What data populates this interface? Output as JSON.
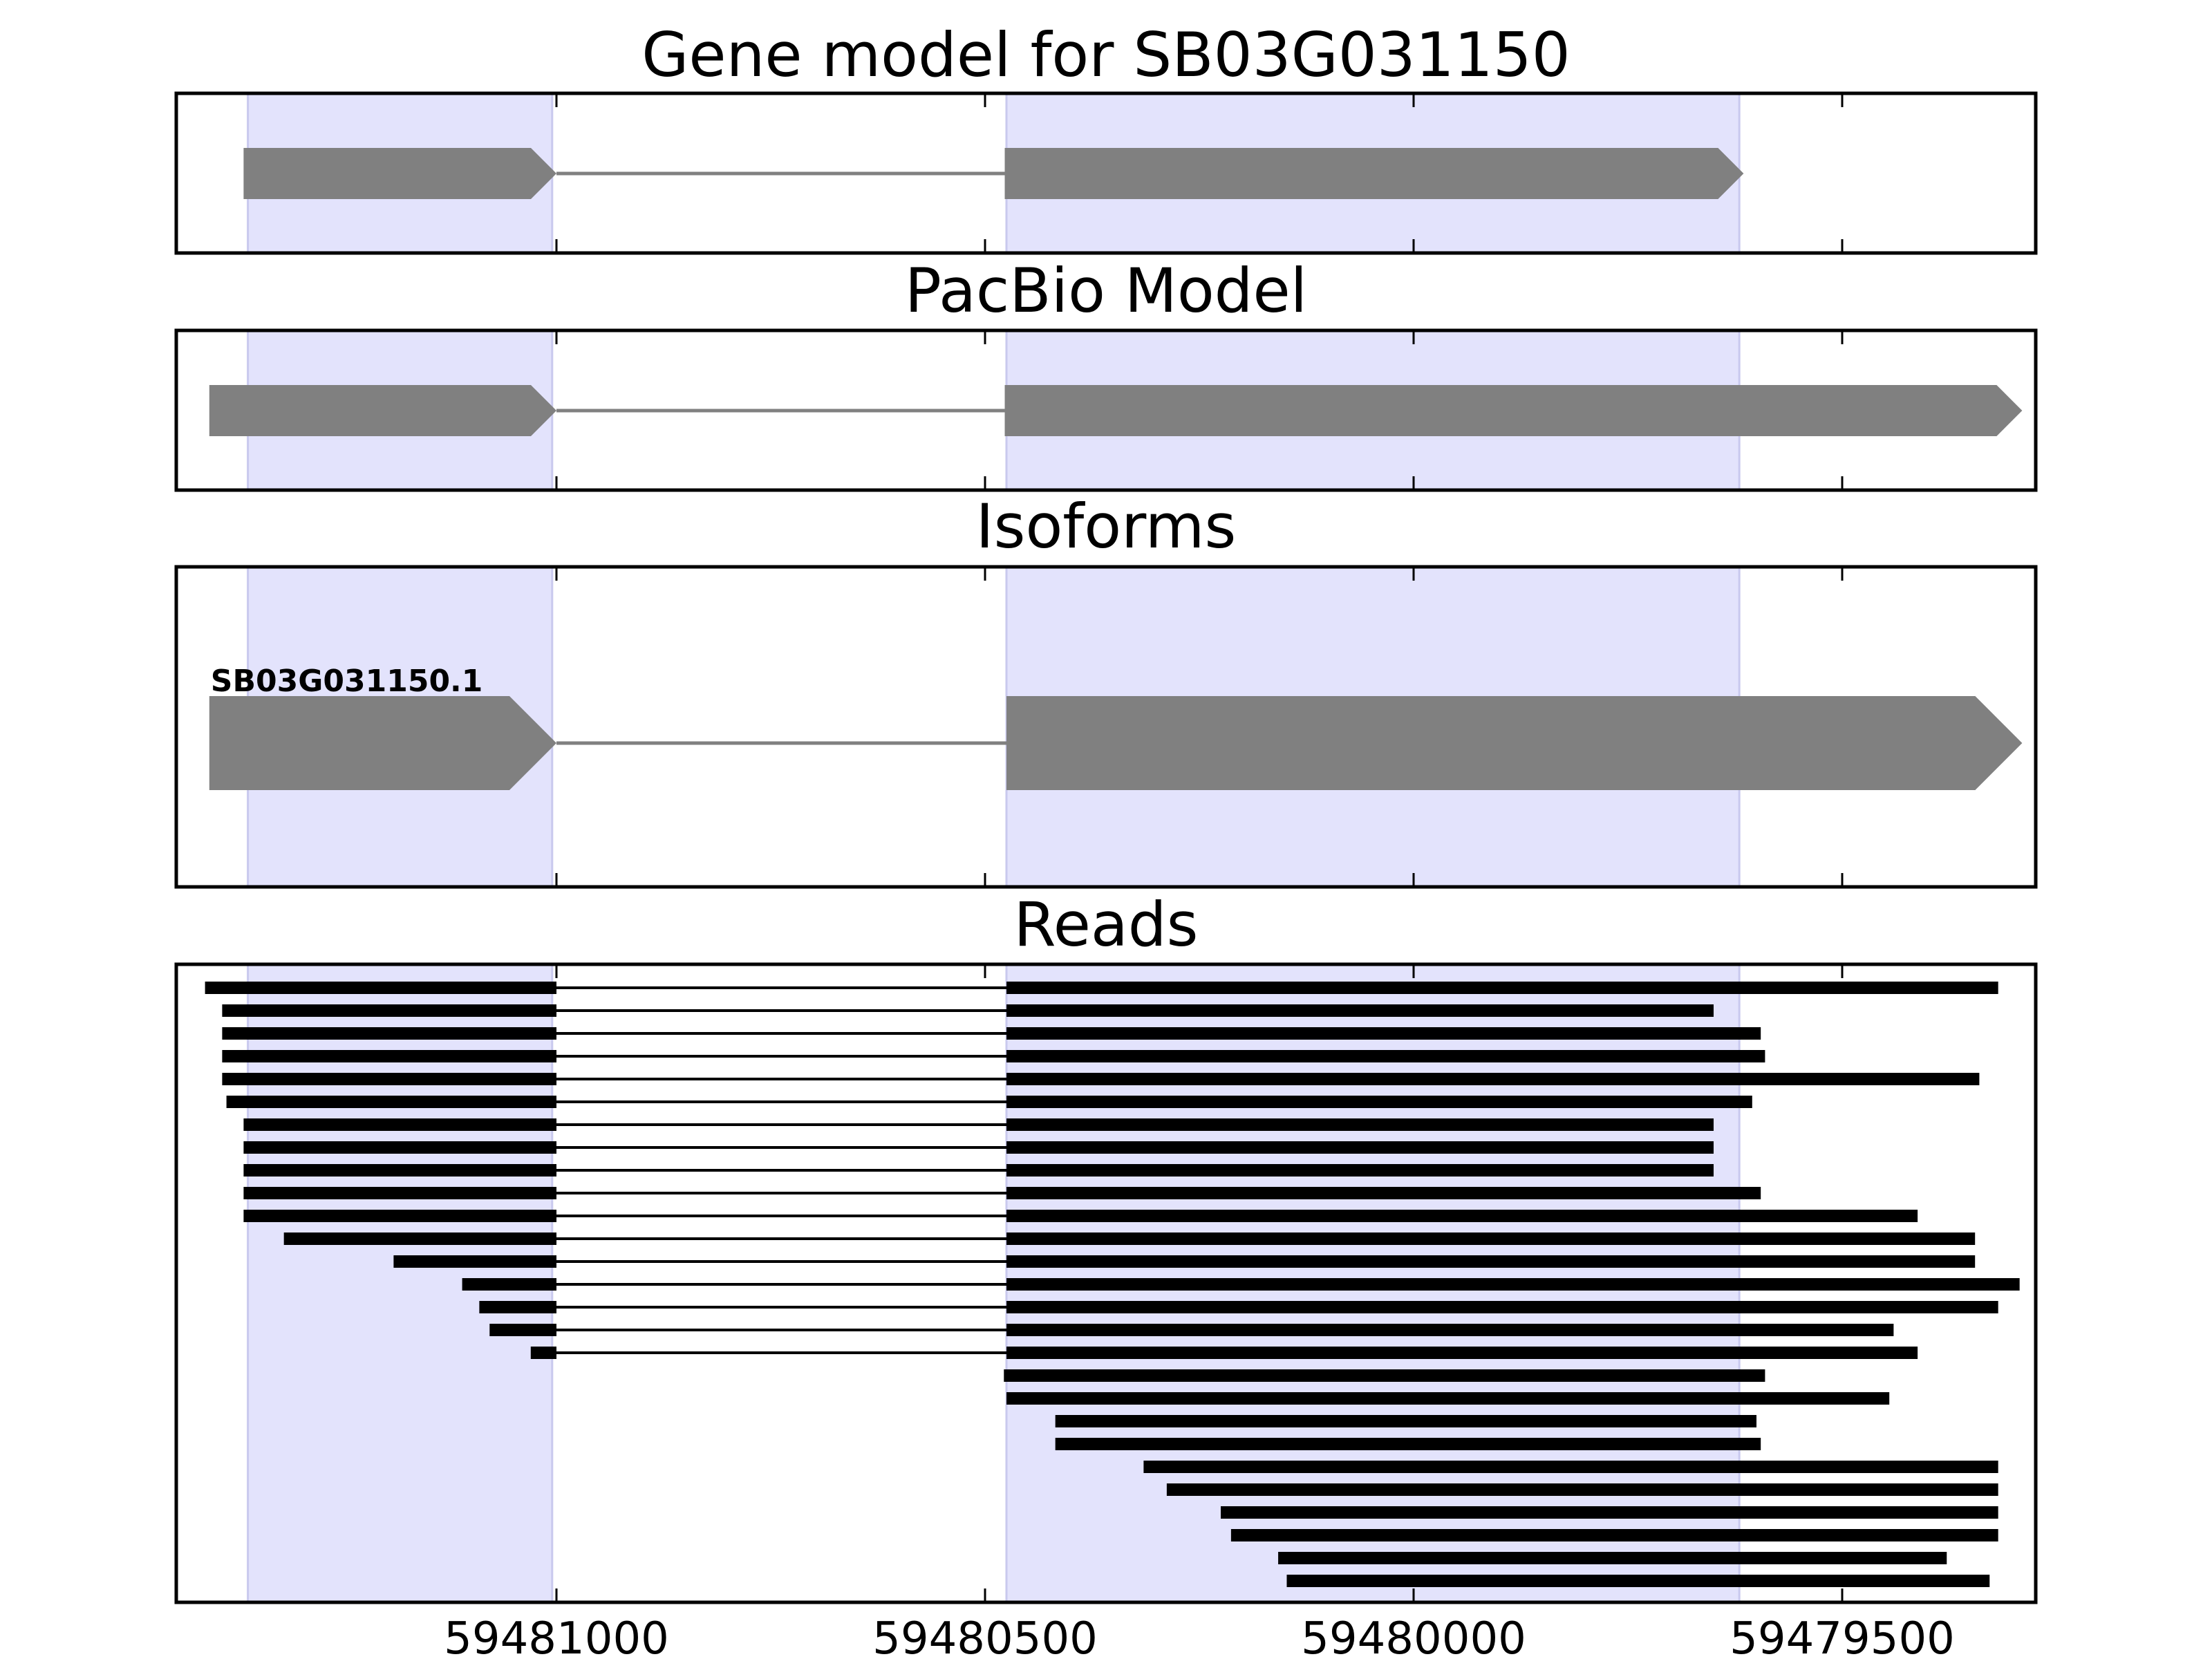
{
  "figure": {
    "titles": {
      "gene_model": "Gene model for SB03G031150",
      "pacbio": "PacBio Model",
      "isoforms": "Isoforms",
      "reads": "Reads"
    },
    "isoform_label": "SB03G031150.1",
    "colors": {
      "exon_highlight": "#e3e3fc",
      "feature": "#808080",
      "intron_line": "#808080",
      "read": "#000000",
      "axes": "#000000"
    }
  },
  "chart_data": {
    "type": "gene-structure",
    "x_axis": {
      "direction": "descending",
      "ticks": [
        59481000,
        59480500,
        59480000,
        59479500
      ],
      "tick_labels": [
        "59481000",
        "59480500",
        "59480000",
        "59479500"
      ],
      "range": [
        59481440,
        59479265
      ]
    },
    "exon_highlights": [
      {
        "start": 59481360,
        "end": 59481005
      },
      {
        "start": 59480475,
        "end": 59479620
      }
    ],
    "panels": [
      {
        "name": "gene_model",
        "exons": [
          {
            "start": 59481365,
            "end": 59481000,
            "arrow": true
          },
          {
            "start": 59480477,
            "end": 59479615,
            "arrow": true
          }
        ]
      },
      {
        "name": "pacbio",
        "exons": [
          {
            "start": 59481405,
            "end": 59481000,
            "arrow": true
          },
          {
            "start": 59480477,
            "end": 59479290,
            "arrow": true
          }
        ]
      },
      {
        "name": "isoforms",
        "isoforms": [
          {
            "label": "SB03G031150.1",
            "exons": [
              {
                "start": 59481405,
                "end": 59481000,
                "arrow": true
              },
              {
                "start": 59480475,
                "end": 59479290,
                "arrow": true
              }
            ]
          }
        ]
      }
    ],
    "reads": [
      {
        "exons": [
          [
            59481410,
            59481000
          ],
          [
            59480475,
            59479318
          ]
        ]
      },
      {
        "exons": [
          [
            59481390,
            59481000
          ],
          [
            59480475,
            59479650
          ]
        ]
      },
      {
        "exons": [
          [
            59481390,
            59481000
          ],
          [
            59480475,
            59479595
          ]
        ]
      },
      {
        "exons": [
          [
            59481390,
            59481000
          ],
          [
            59480475,
            59479590
          ]
        ]
      },
      {
        "exons": [
          [
            59481390,
            59481000
          ],
          [
            59480475,
            59479340
          ]
        ]
      },
      {
        "exons": [
          [
            59481385,
            59481000
          ],
          [
            59480475,
            59479605
          ]
        ]
      },
      {
        "exons": [
          [
            59481365,
            59481000
          ],
          [
            59480475,
            59479650
          ]
        ]
      },
      {
        "exons": [
          [
            59481365,
            59481000
          ],
          [
            59480475,
            59479650
          ]
        ]
      },
      {
        "exons": [
          [
            59481365,
            59481000
          ],
          [
            59480475,
            59479650
          ]
        ]
      },
      {
        "exons": [
          [
            59481365,
            59481000
          ],
          [
            59480475,
            59479595
          ]
        ]
      },
      {
        "exons": [
          [
            59481365,
            59481000
          ],
          [
            59480475,
            59479412
          ]
        ]
      },
      {
        "exons": [
          [
            59481318,
            59481000
          ],
          [
            59480475,
            59479345
          ]
        ]
      },
      {
        "exons": [
          [
            59481190,
            59481000
          ],
          [
            59480475,
            59479345
          ]
        ]
      },
      {
        "exons": [
          [
            59481110,
            59481000
          ],
          [
            59480475,
            59479293
          ]
        ]
      },
      {
        "exons": [
          [
            59481090,
            59481000
          ],
          [
            59480475,
            59479318
          ]
        ]
      },
      {
        "exons": [
          [
            59481078,
            59481000
          ],
          [
            59480475,
            59479440
          ]
        ]
      },
      {
        "exons": [
          [
            59481030,
            59481000
          ],
          [
            59480475,
            59479412
          ]
        ]
      },
      {
        "exons": [
          [
            59480478,
            59479590
          ]
        ]
      },
      {
        "exons": [
          [
            59480475,
            59479445
          ]
        ]
      },
      {
        "exons": [
          [
            59480418,
            59479600
          ]
        ]
      },
      {
        "exons": [
          [
            59480418,
            59479595
          ]
        ]
      },
      {
        "exons": [
          [
            59480315,
            59479318
          ]
        ]
      },
      {
        "exons": [
          [
            59480288,
            59479318
          ]
        ]
      },
      {
        "exons": [
          [
            59480225,
            59479318
          ]
        ]
      },
      {
        "exons": [
          [
            59480213,
            59479318
          ]
        ]
      },
      {
        "exons": [
          [
            59480158,
            59479378
          ]
        ]
      },
      {
        "exons": [
          [
            59480148,
            59479328
          ]
        ]
      }
    ]
  }
}
